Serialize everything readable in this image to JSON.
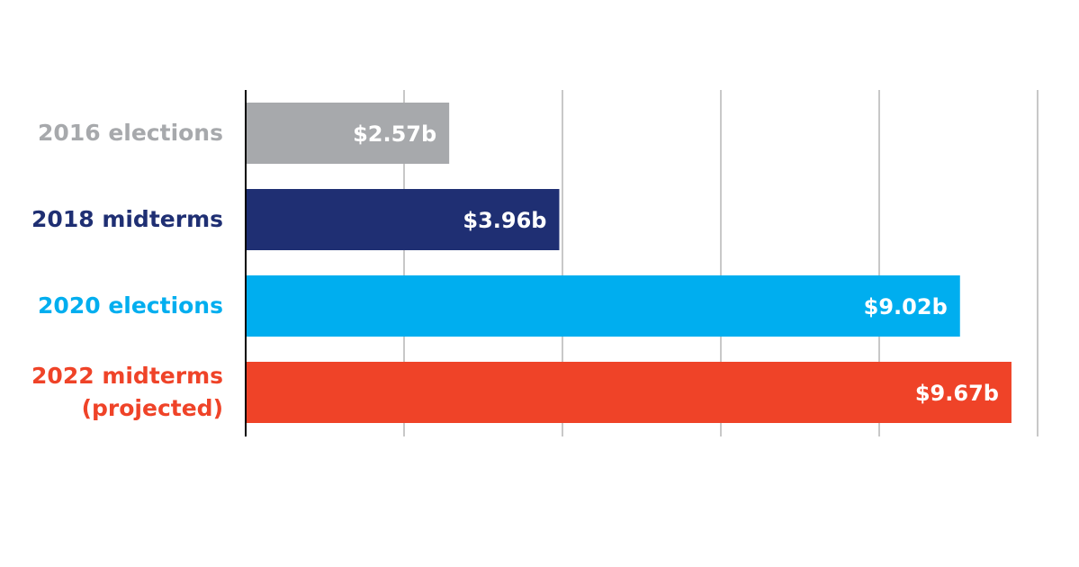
{
  "chart_data": {
    "type": "hbar",
    "categories": [
      "2016 elections",
      "2018 midterms",
      "2020 elections",
      "2022 midterms (projected)"
    ],
    "values": [
      2.57,
      3.96,
      9.02,
      9.67
    ],
    "value_labels": [
      "$2.57b",
      "$3.96b",
      "$9.02b",
      "$9.67b"
    ],
    "colors": [
      "#a7a9ac",
      "#1f2f73",
      "#00aeef",
      "#ef4328"
    ],
    "xlim": [
      0,
      10
    ],
    "xticks": [
      0,
      2,
      4,
      6,
      8,
      10
    ],
    "grid": true
  }
}
